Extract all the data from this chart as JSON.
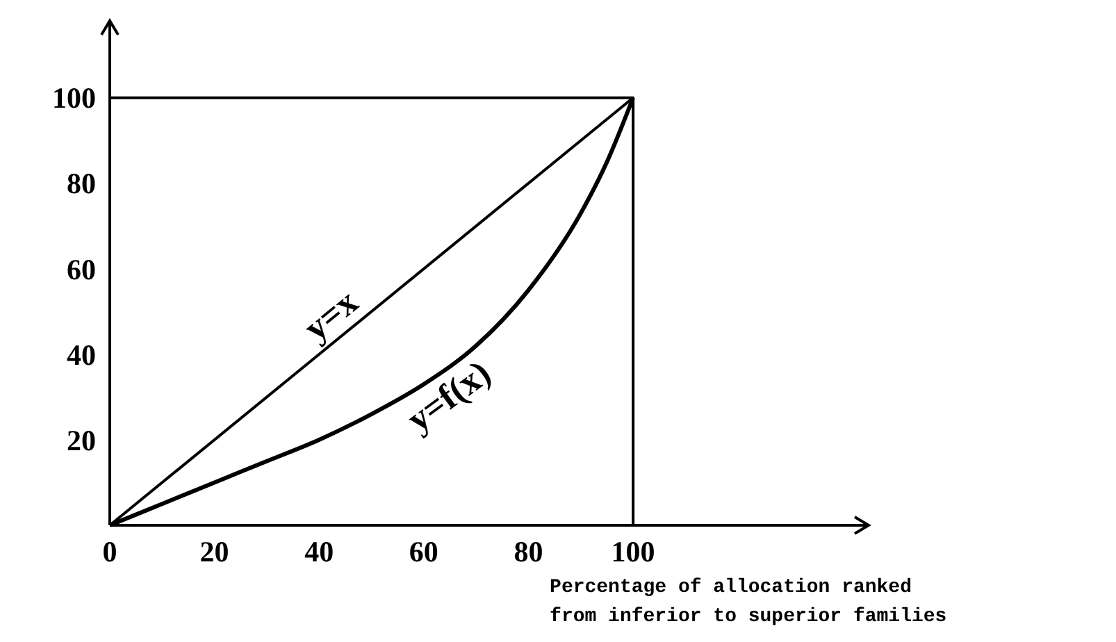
{
  "chart_data": {
    "type": "line",
    "xlabel": "Percentage of allocation ranked\nfrom inferior to superior families",
    "xlim": [
      0,
      145
    ],
    "ylim": [
      0,
      118
    ],
    "xticks": [
      0,
      20,
      40,
      60,
      80,
      100
    ],
    "yticks": [
      20,
      40,
      60,
      80,
      100
    ],
    "grid": false,
    "marker": "none",
    "line_style": "solid",
    "series": [
      {
        "name": "y=x",
        "color": "#000000",
        "x": [
          0,
          100
        ],
        "values": [
          0,
          100
        ]
      },
      {
        "name": "y=f(x)",
        "color": "#000000",
        "x": [
          0,
          10,
          20,
          30,
          40,
          50,
          60,
          70,
          80,
          90,
          95,
          100
        ],
        "values": [
          0,
          5,
          10,
          15,
          20,
          26,
          33,
          42,
          55,
          73,
          85,
          100
        ]
      },
      {
        "color": "#000000",
        "x": [
          0,
          100,
          100
        ],
        "values": [
          100,
          100,
          0
        ]
      }
    ]
  }
}
